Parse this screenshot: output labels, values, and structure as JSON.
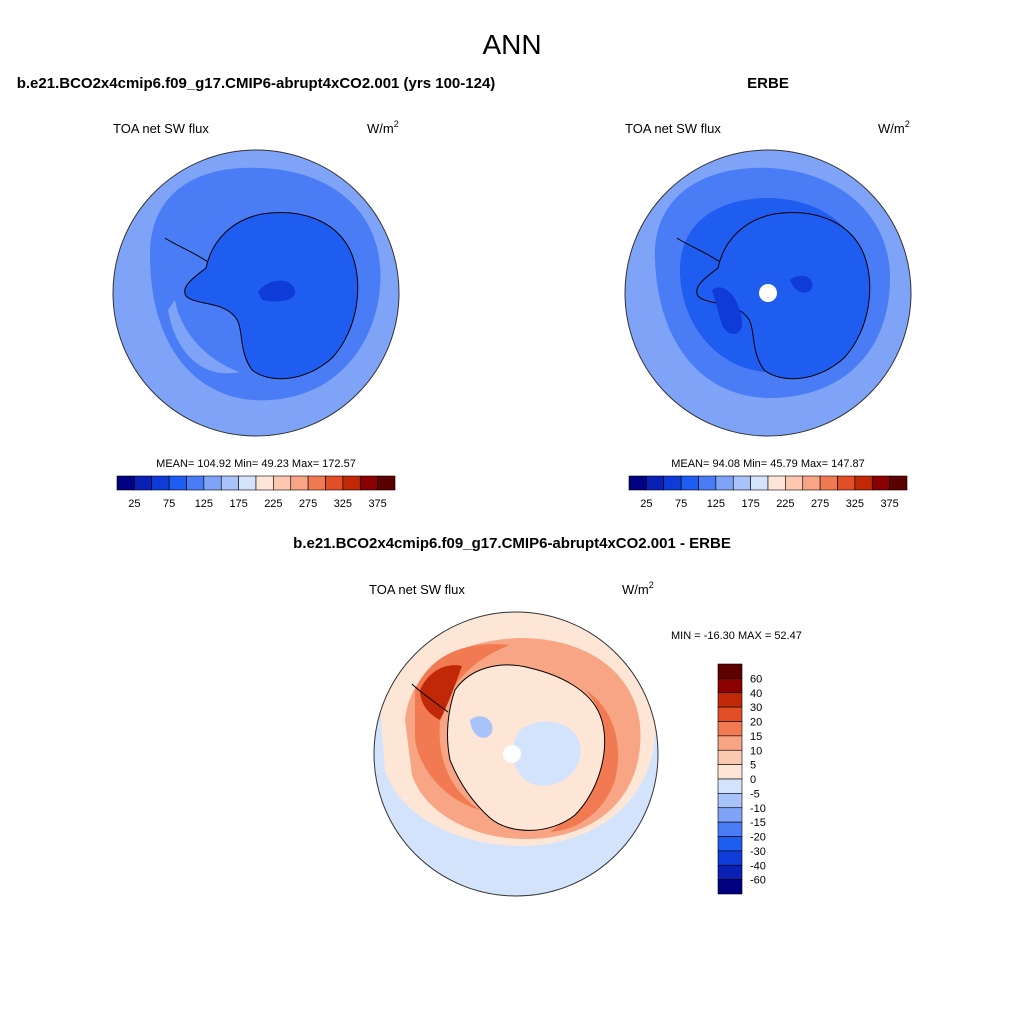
{
  "page": {
    "title": "ANN"
  },
  "chart_data": [
    {
      "type": "heatmap",
      "projection": "south-polar-stereographic",
      "title": "b.e21.BCO2x4cmip6.f09_g17.CMIP6-abrupt4xCO2.001 (yrs 100-124)",
      "left_label": "TOA net SW flux",
      "units_base": "W/m",
      "units_exp": "2",
      "stats": {
        "label": "MEAN= 104.92  Min=  49.23  Max= 172.57",
        "mean": 104.92,
        "min": 49.23,
        "max": 172.57
      },
      "colorbar": {
        "orientation": "horizontal",
        "levels": [
          25,
          50,
          75,
          100,
          125,
          150,
          175,
          200,
          225,
          250,
          275,
          300,
          325,
          350,
          375
        ],
        "tick_labels": [
          "25",
          "75",
          "125",
          "175",
          "225",
          "275",
          "325",
          "375"
        ],
        "colors": [
          "#000080",
          "#0a1fb4",
          "#0f3bd9",
          "#1f5cf0",
          "#4a7df5",
          "#7ea3f7",
          "#a8c2fa",
          "#d4e3fc",
          "#fde6d6",
          "#fbc9b0",
          "#f7a584",
          "#f27a52",
          "#e24e26",
          "#c02808",
          "#8b0000",
          "#5c0000"
        ]
      }
    },
    {
      "type": "heatmap",
      "projection": "south-polar-stereographic",
      "title": "ERBE",
      "left_label": "TOA net SW flux",
      "units_base": "W/m",
      "units_exp": "2",
      "stats": {
        "label": "MEAN=  94.08  Min=  45.79  Max= 147.87",
        "mean": 94.08,
        "min": 45.79,
        "max": 147.87
      },
      "colorbar": {
        "orientation": "horizontal",
        "levels": [
          25,
          50,
          75,
          100,
          125,
          150,
          175,
          200,
          225,
          250,
          275,
          300,
          325,
          350,
          375
        ],
        "tick_labels": [
          "25",
          "75",
          "125",
          "175",
          "225",
          "275",
          "325",
          "375"
        ],
        "colors": [
          "#000080",
          "#0a1fb4",
          "#0f3bd9",
          "#1f5cf0",
          "#4a7df5",
          "#7ea3f7",
          "#a8c2fa",
          "#d4e3fc",
          "#fde6d6",
          "#fbc9b0",
          "#f7a584",
          "#f27a52",
          "#e24e26",
          "#c02808",
          "#8b0000",
          "#5c0000"
        ]
      }
    },
    {
      "type": "heatmap",
      "projection": "south-polar-stereographic",
      "title": "b.e21.BCO2x4cmip6.f09_g17.CMIP6-abrupt4xCO2.001 - ERBE",
      "left_label": "TOA net SW flux",
      "units_base": "W/m",
      "units_exp": "2",
      "stats": {
        "label": "MIN = -16.30 MAX =  52.47",
        "min": -16.3,
        "max": 52.47
      },
      "colorbar": {
        "orientation": "vertical",
        "levels": [
          -60,
          -40,
          -30,
          -20,
          -15,
          -10,
          -5,
          0,
          5,
          10,
          15,
          20,
          30,
          40,
          60
        ],
        "tick_labels": [
          "60",
          "40",
          "30",
          "20",
          "15",
          "10",
          "5",
          "0",
          "-5",
          "-10",
          "-15",
          "-20",
          "-30",
          "-40",
          "-60"
        ],
        "colors": [
          "#000080",
          "#0a1fb4",
          "#0f3bd9",
          "#1f5cf0",
          "#4a7df5",
          "#7ea3f7",
          "#a8c2fa",
          "#d4e3fc",
          "#fde6d6",
          "#fbc9b0",
          "#f7a584",
          "#f27a52",
          "#e24e26",
          "#c02808",
          "#8b0000",
          "#5c0000"
        ]
      }
    }
  ],
  "colors": {
    "ocean_outer_1": "#7ea3f7",
    "ocean_mid_1": "#4a7df5",
    "land_1": "#1f5cf0",
    "deep_1": "#0f3bd9",
    "ocean_outer_2": "#7ea3f7",
    "ocean_mid_2": "#4a7df5",
    "land_2": "#1f5cf0",
    "deep_2": "#0f3bd9",
    "diff_base": "#fde6d6",
    "diff_ring": "#f7a584",
    "diff_warm": "#f27a52",
    "diff_hot": "#e24e26",
    "diff_max": "#c02808",
    "diff_cool": "#d4e3fc",
    "diff_cold": "#a8c2fa"
  }
}
